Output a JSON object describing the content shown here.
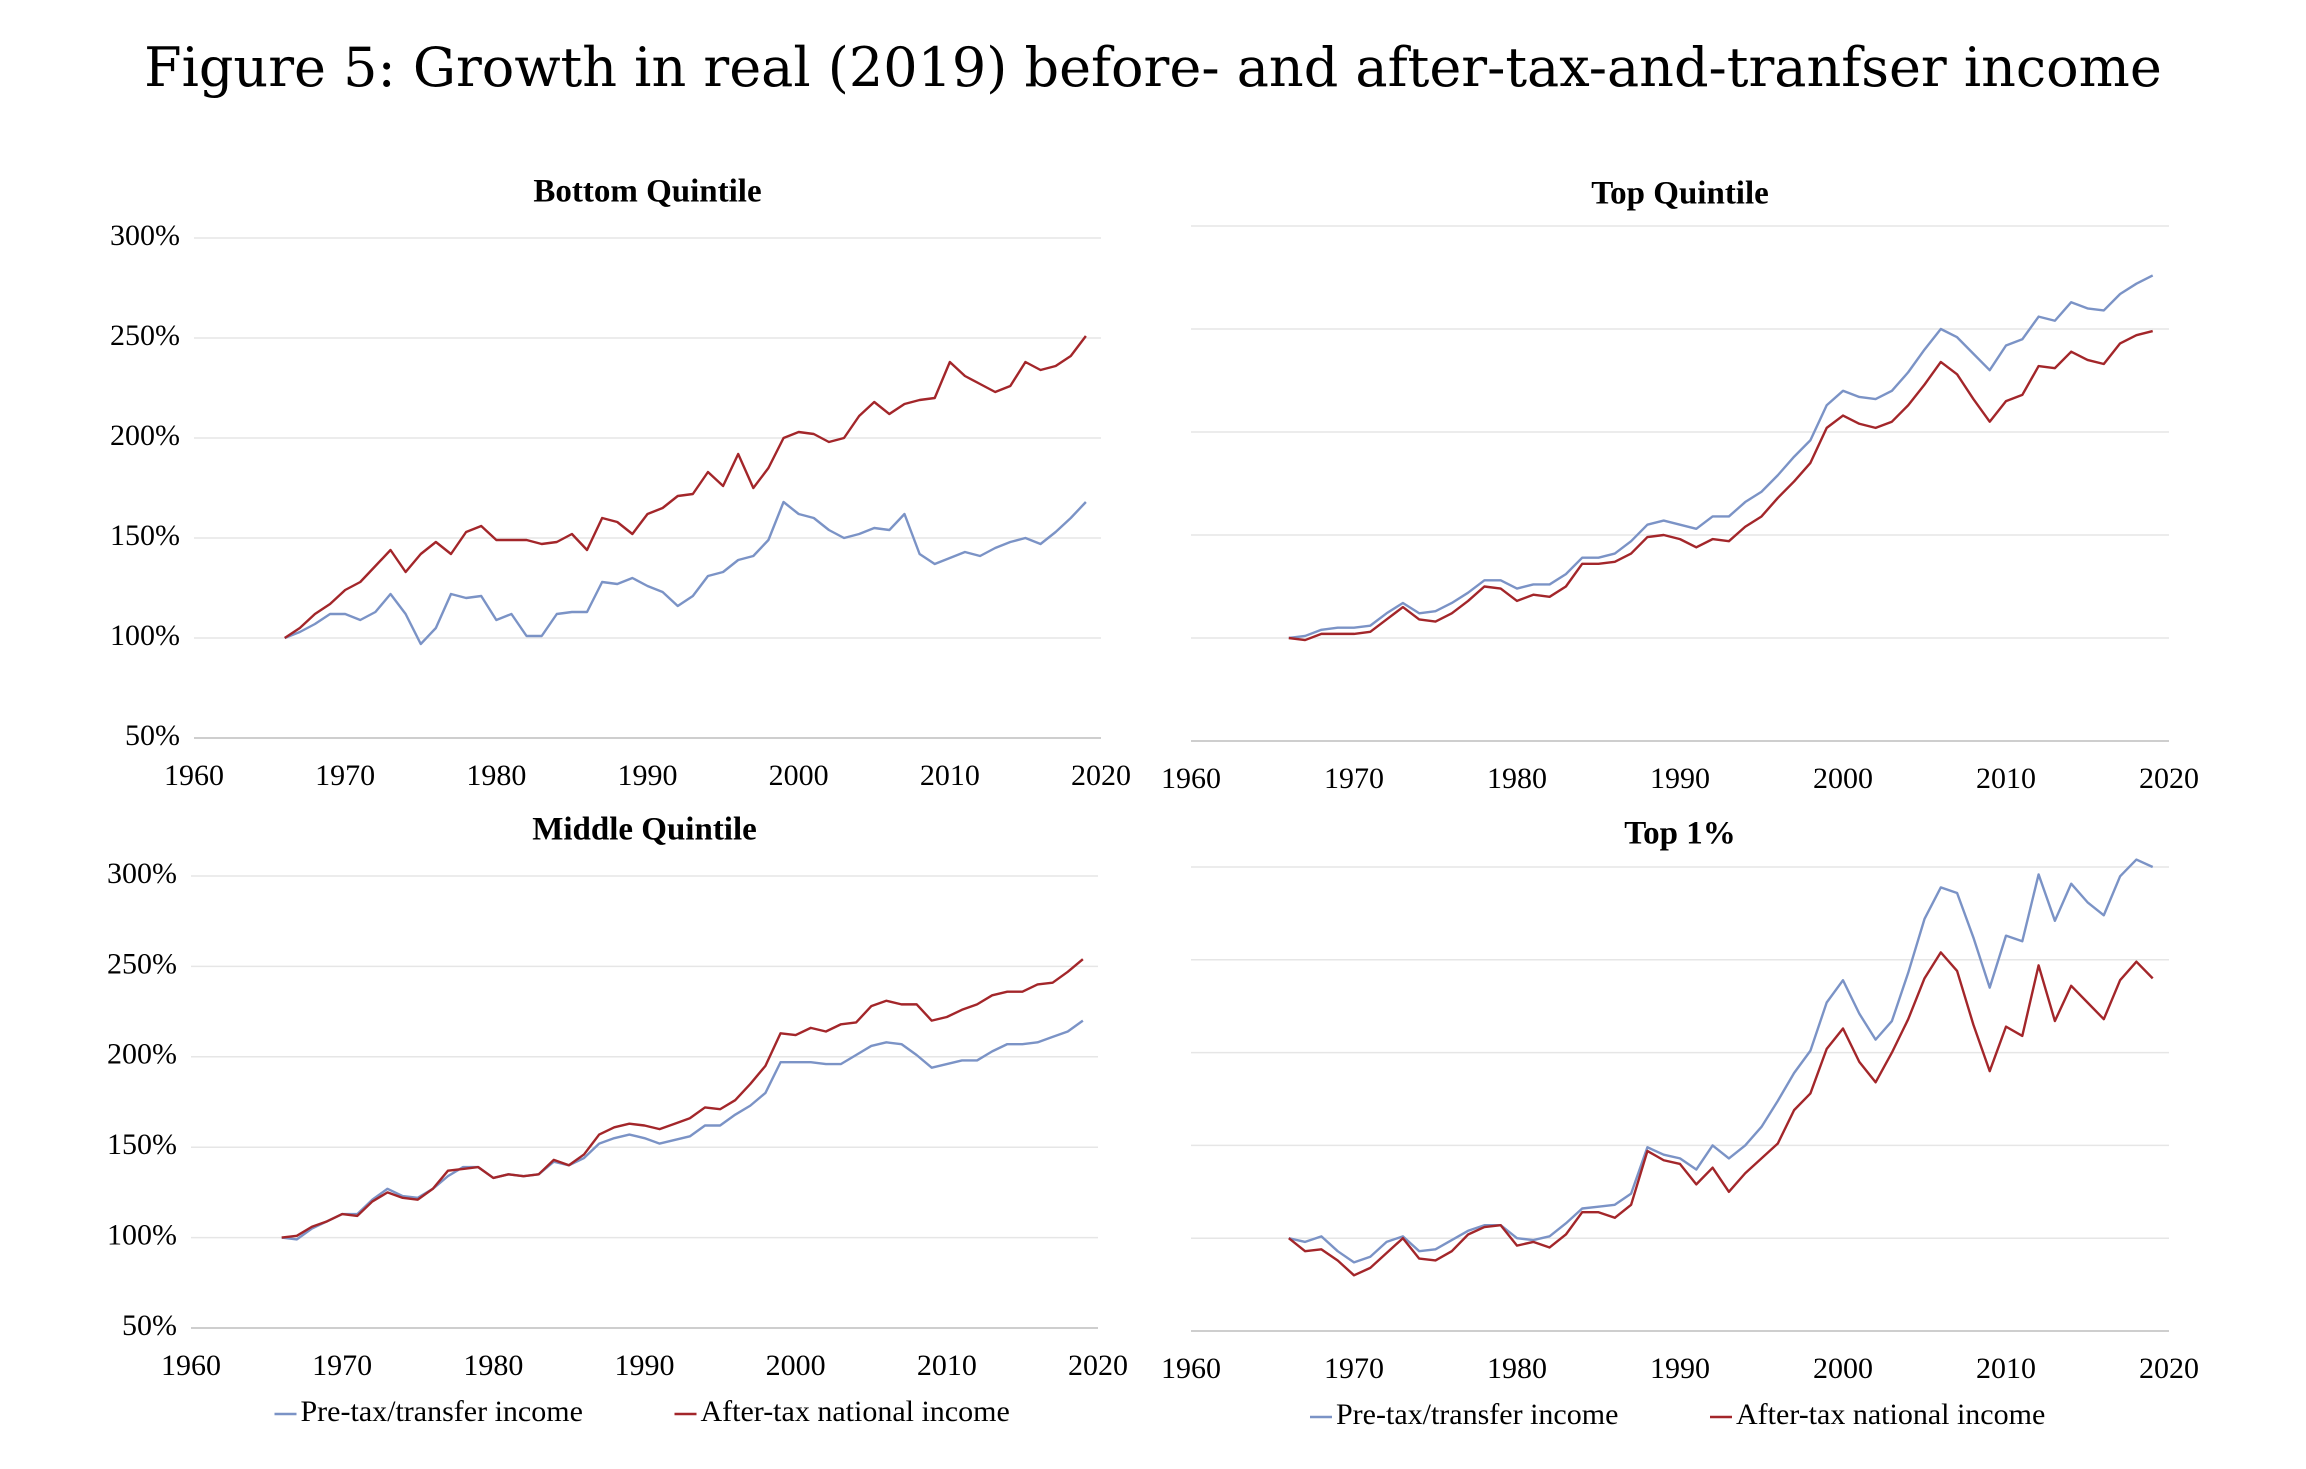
{
  "title": "Figure 5: Growth in real (2019) before- and after-tax-and-tranfser income",
  "chart_data": [
    {
      "type": "line",
      "title": "Bottom Quintile",
      "x": [
        1966,
        1967,
        1968,
        1969,
        1970,
        1971,
        1972,
        1973,
        1974,
        1975,
        1976,
        1977,
        1978,
        1979,
        1980,
        1981,
        1982,
        1983,
        1984,
        1985,
        1986,
        1987,
        1988,
        1989,
        1990,
        1991,
        1992,
        1993,
        1994,
        1995,
        1996,
        1997,
        1998,
        1999,
        2000,
        2001,
        2002,
        2003,
        2004,
        2005,
        2006,
        2007,
        2008,
        2009,
        2010,
        2011,
        2012,
        2013,
        2014,
        2015,
        2016,
        2017,
        2018,
        2019
      ],
      "series": [
        {
          "name": "Pre-tax/transfer income",
          "color": "#7b93c6",
          "values": [
            100,
            103,
            107,
            112,
            112,
            109,
            113,
            122,
            112,
            97,
            105,
            122,
            120,
            121,
            109,
            112,
            101,
            101,
            112,
            113,
            113,
            128,
            127,
            130,
            126,
            123,
            116,
            121,
            131,
            133,
            139,
            141,
            149,
            168,
            162,
            160,
            154,
            150,
            152,
            155,
            154,
            162,
            142,
            137,
            140,
            143,
            141,
            145,
            148,
            150,
            147,
            153,
            160,
            168
          ]
        },
        {
          "name": "After-tax national income",
          "color": "#a3262a",
          "values": [
            100,
            105,
            112,
            117,
            124,
            128,
            136,
            144,
            133,
            142,
            148,
            142,
            153,
            156,
            149,
            149,
            149,
            147,
            148,
            152,
            144,
            160,
            158,
            152,
            162,
            165,
            171,
            172,
            183,
            176,
            192,
            175,
            185,
            200,
            203,
            202,
            198,
            200,
            211,
            218,
            212,
            217,
            219,
            220,
            238,
            231,
            227,
            223,
            226,
            238,
            234,
            236,
            241,
            251
          ]
        }
      ],
      "xlim": [
        1960,
        2020
      ],
      "xticks": [
        1960,
        1970,
        1980,
        1990,
        2000,
        2010,
        2020
      ],
      "ylim": [
        50,
        300
      ],
      "yticks": [
        {
          "value": 50,
          "label": "50%"
        },
        {
          "value": 100,
          "label": "100%"
        },
        {
          "value": 150,
          "label": "150%"
        },
        {
          "value": 200,
          "label": "200%"
        },
        {
          "value": 250,
          "label": "250%"
        },
        {
          "value": 300,
          "label": "300%"
        }
      ],
      "grid": true
    },
    {
      "type": "line",
      "title": "Top Quintile",
      "x": [
        1966,
        1967,
        1968,
        1969,
        1970,
        1971,
        1972,
        1973,
        1974,
        1975,
        1976,
        1977,
        1978,
        1979,
        1980,
        1981,
        1982,
        1983,
        1984,
        1985,
        1986,
        1987,
        1988,
        1989,
        1990,
        1991,
        1992,
        1993,
        1994,
        1995,
        1996,
        1997,
        1998,
        1999,
        2000,
        2001,
        2002,
        2003,
        2004,
        2005,
        2006,
        2007,
        2008,
        2009,
        2010,
        2011,
        2012,
        2013,
        2014,
        2015,
        2016,
        2017,
        2018,
        2019
      ],
      "series": [
        {
          "name": "Pre-tax/transfer income",
          "color": "#7b93c6",
          "values": [
            100,
            101,
            104,
            105,
            105,
            106,
            112,
            117,
            112,
            113,
            117,
            122,
            128,
            128,
            124,
            126,
            126,
            131,
            139,
            139,
            141,
            147,
            155,
            157,
            155,
            153,
            159,
            159,
            166,
            171,
            179,
            188,
            196,
            213,
            220,
            217,
            216,
            220,
            229,
            240,
            250,
            246,
            238,
            230,
            242,
            245,
            256,
            254,
            263,
            260,
            259,
            267,
            272,
            276
          ]
        },
        {
          "name": "After-tax national income",
          "color": "#a3262a",
          "values": [
            100,
            99,
            102,
            102,
            102,
            103,
            109,
            115,
            109,
            108,
            112,
            118,
            125,
            124,
            118,
            121,
            120,
            125,
            136,
            136,
            137,
            141,
            149,
            150,
            148,
            144,
            148,
            147,
            154,
            159,
            168,
            176,
            185,
            202,
            208,
            204,
            202,
            205,
            213,
            223,
            234,
            228,
            216,
            205,
            215,
            218,
            232,
            231,
            239,
            235,
            233,
            243,
            247,
            249
          ]
        }
      ],
      "xlim": [
        1960,
        2020
      ],
      "xticks": [
        1960,
        1970,
        1980,
        1990,
        2000,
        2010,
        2020
      ],
      "ylim": [
        50,
        300
      ],
      "yticks": [
        50,
        100,
        150,
        200,
        250,
        300
      ],
      "ytick_labels": false,
      "grid": true
    },
    {
      "type": "line",
      "title": "Middle Quintile",
      "x": [
        1966,
        1967,
        1968,
        1969,
        1970,
        1971,
        1972,
        1973,
        1974,
        1975,
        1976,
        1977,
        1978,
        1979,
        1980,
        1981,
        1982,
        1983,
        1984,
        1985,
        1986,
        1987,
        1988,
        1989,
        1990,
        1991,
        1992,
        1993,
        1994,
        1995,
        1996,
        1997,
        1998,
        1999,
        2000,
        2001,
        2002,
        2003,
        2004,
        2005,
        2006,
        2007,
        2008,
        2009,
        2010,
        2011,
        2012,
        2013,
        2014,
        2015,
        2016,
        2017,
        2018,
        2019
      ],
      "series": [
        {
          "name": "Pre-tax/transfer income",
          "color": "#7b93c6",
          "values": [
            100,
            99,
            105,
            109,
            113,
            113,
            121,
            127,
            123,
            122,
            127,
            134,
            139,
            139,
            133,
            135,
            134,
            135,
            142,
            140,
            144,
            152,
            155,
            157,
            155,
            152,
            154,
            156,
            162,
            162,
            168,
            173,
            180,
            197,
            197,
            197,
            196,
            196,
            201,
            206,
            208,
            207,
            201,
            194,
            196,
            198,
            198,
            203,
            207,
            207,
            208,
            211,
            214,
            220
          ]
        },
        {
          "name": "After-tax national income",
          "color": "#a3262a",
          "values": [
            100,
            101,
            106,
            109,
            113,
            112,
            120,
            125,
            122,
            121,
            127,
            137,
            138,
            139,
            133,
            135,
            134,
            135,
            143,
            140,
            146,
            157,
            161,
            163,
            162,
            160,
            163,
            166,
            172,
            171,
            176,
            185,
            195,
            213,
            212,
            216,
            214,
            218,
            219,
            228,
            231,
            229,
            229,
            220,
            222,
            226,
            229,
            234,
            236,
            236,
            240,
            241,
            247,
            254
          ]
        }
      ],
      "xlim": [
        1960,
        2020
      ],
      "xticks": [
        1960,
        1970,
        1980,
        1990,
        2000,
        2010,
        2020
      ],
      "ylim": [
        50,
        300
      ],
      "yticks": [
        {
          "value": 50,
          "label": "50%"
        },
        {
          "value": 100,
          "label": "100%"
        },
        {
          "value": 150,
          "label": "150%"
        },
        {
          "value": 200,
          "label": "200%"
        },
        {
          "value": 250,
          "label": "250%"
        },
        {
          "value": 300,
          "label": "300%"
        }
      ],
      "grid": true,
      "legend": "bottom"
    },
    {
      "type": "line",
      "title": "Top 1%",
      "x": [
        1966,
        1967,
        1968,
        1969,
        1970,
        1971,
        1972,
        1973,
        1974,
        1975,
        1976,
        1977,
        1978,
        1979,
        1980,
        1981,
        1982,
        1983,
        1984,
        1985,
        1986,
        1987,
        1988,
        1989,
        1990,
        1991,
        1992,
        1993,
        1994,
        1995,
        1996,
        1997,
        1998,
        1999,
        2000,
        2001,
        2002,
        2003,
        2004,
        2005,
        2006,
        2007,
        2008,
        2009,
        2010,
        2011,
        2012,
        2013,
        2014,
        2015,
        2016,
        2017,
        2018,
        2019
      ],
      "series": [
        {
          "name": "Pre-tax/transfer income",
          "color": "#7b93c6",
          "values": [
            100,
            98,
            101,
            93,
            87,
            90,
            98,
            101,
            93,
            94,
            99,
            104,
            107,
            107,
            100,
            99,
            101,
            108,
            116,
            117,
            118,
            124,
            149,
            145,
            143,
            137,
            150,
            143,
            150,
            160,
            174,
            189,
            201,
            227,
            239,
            221,
            207,
            217,
            243,
            272,
            289,
            286,
            262,
            235,
            263,
            260,
            296,
            271,
            291,
            281,
            274,
            295,
            304,
            300
          ]
        },
        {
          "name": "After-tax national income",
          "color": "#a3262a",
          "values": [
            100,
            93,
            94,
            88,
            80,
            84,
            92,
            100,
            89,
            88,
            93,
            102,
            106,
            107,
            96,
            98,
            95,
            102,
            114,
            114,
            111,
            118,
            147,
            142,
            140,
            129,
            138,
            125,
            135,
            143,
            151,
            169,
            178,
            202,
            213,
            195,
            184,
            200,
            218,
            240,
            254,
            244,
            215,
            190,
            214,
            209,
            247,
            217,
            236,
            227,
            218,
            239,
            249,
            240
          ]
        }
      ],
      "xlim": [
        1960,
        2020
      ],
      "xticks": [
        1960,
        1970,
        1980,
        1990,
        2000,
        2010,
        2020
      ],
      "ylim": [
        50,
        300
      ],
      "yticks": [
        50,
        100,
        150,
        200,
        250,
        300
      ],
      "ytick_labels": false,
      "grid": true,
      "legend": "bottom"
    }
  ]
}
